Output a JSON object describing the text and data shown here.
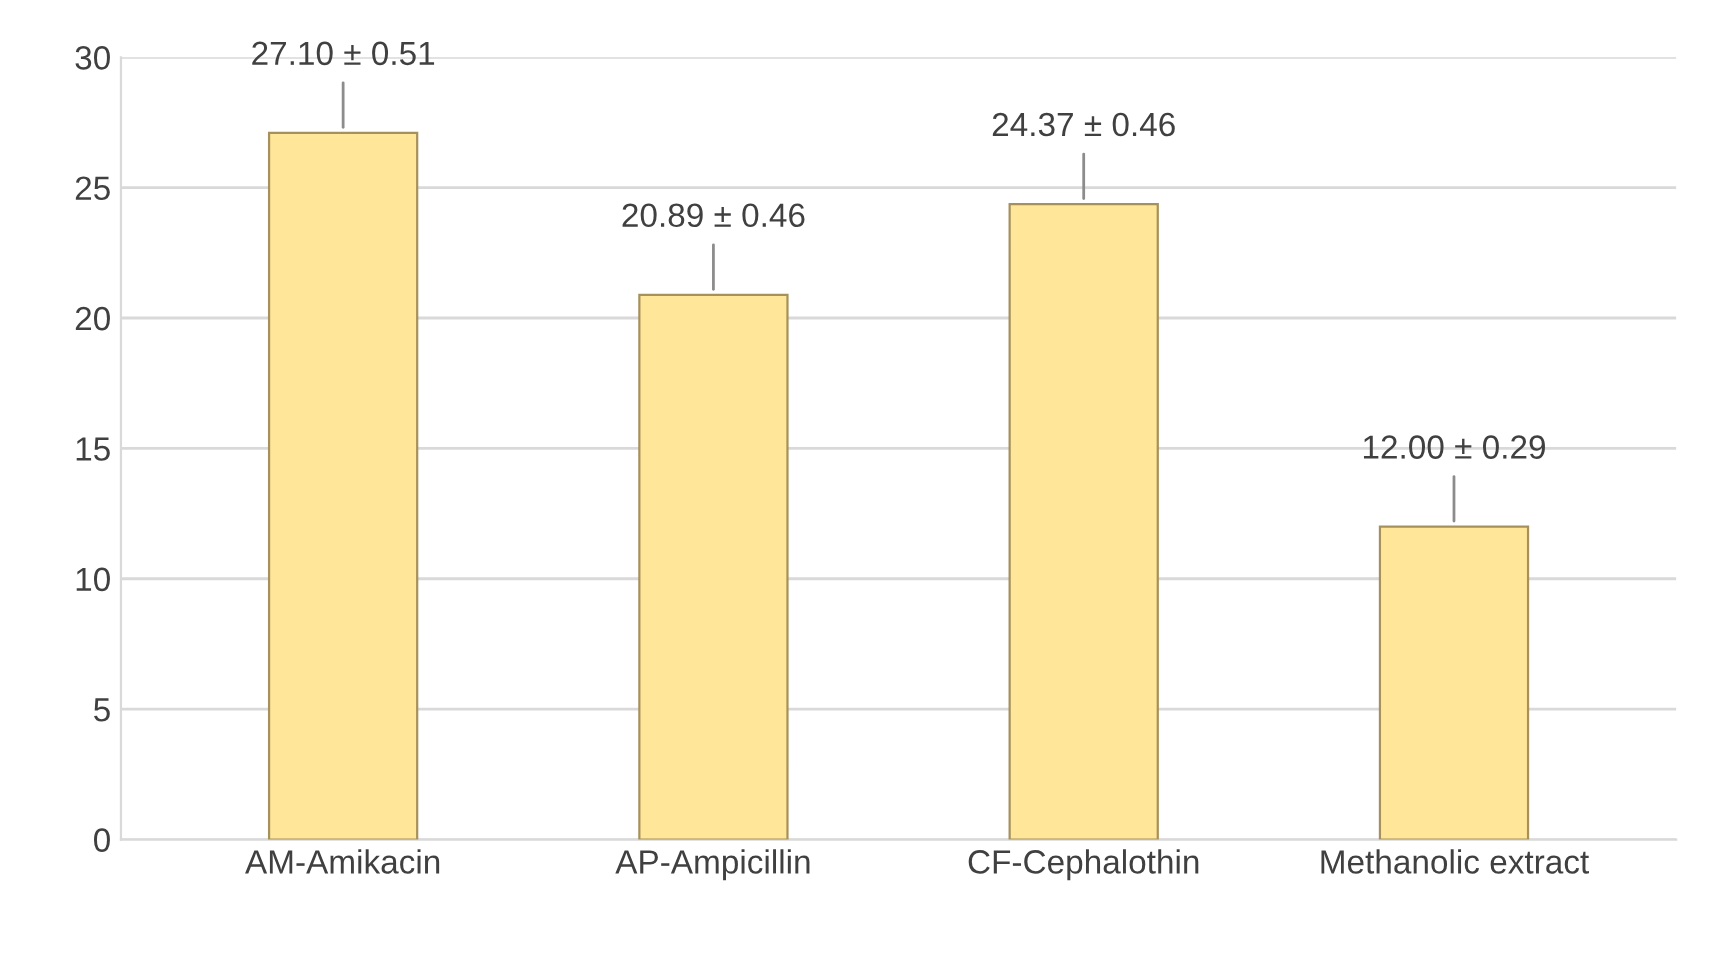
{
  "chart_data": {
    "type": "bar",
    "categories": [
      "AM-Amikacin",
      "AP-Ampicillin",
      "CF-Cephalothin",
      "Methanolic extract"
    ],
    "values": [
      27.1,
      20.89,
      24.37,
      12.0
    ],
    "value_labels": [
      "27.10 ± 0.51",
      "20.89 ± 0.46",
      "24.37 ± 0.46",
      "12.00 ± 0.29"
    ],
    "color": "#ffe699",
    "ylim": [
      0,
      30
    ],
    "yticks": [
      0,
      5,
      10,
      15,
      20,
      25,
      30
    ],
    "grid": "y"
  }
}
